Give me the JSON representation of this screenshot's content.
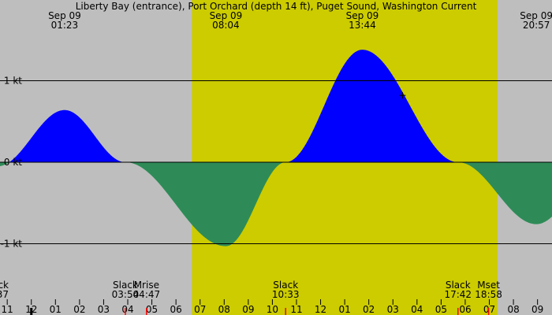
{
  "chart_data": {
    "type": "area",
    "title": "Liberty Bay (entrance), Port Orchard (depth 14 ft), Puget Sound, Washington Current",
    "xlabel": "",
    "ylabel": "",
    "x_unit": "hours",
    "xlim": [
      10.7,
      33.6
    ],
    "ylim": [
      -1.95,
      2.0
    ],
    "colors": {
      "background": "#bebebe",
      "daylight": "#cccc00",
      "flood": "#0000ff",
      "ebb": "#2e8b57",
      "line": "#000000",
      "tick_red": "#ff0000"
    },
    "daylight": {
      "start": 18.66,
      "end": 31.34
    },
    "y_ticks": [
      {
        "value": 1,
        "label": "1 kt"
      },
      {
        "value": 0,
        "label": "0 kt"
      },
      {
        "value": -1,
        "label": "-1 kt"
      }
    ],
    "series": [
      {
        "values": [
          {
            "x": 10.6,
            "y": -0.05
          },
          {
            "x": 13.38,
            "y": 0.64
          },
          {
            "x": 15.9,
            "y": 0.0
          },
          {
            "x": 20.07,
            "y": -1.03
          },
          {
            "x": 22.55,
            "y": 0.0
          },
          {
            "x": 25.73,
            "y": 1.38
          },
          {
            "x": 29.7,
            "y": 0.0
          },
          {
            "x": 32.95,
            "y": -0.76
          },
          {
            "x": 35.5,
            "y": -0.15
          }
        ]
      }
    ],
    "top_labels": [
      {
        "x": 13.38,
        "date": "Sep 09",
        "time": "01:23"
      },
      {
        "x": 20.07,
        "date": "Sep 09",
        "time": "08:04"
      },
      {
        "x": 25.73,
        "date": "Sep 09",
        "time": "13:44"
      },
      {
        "x": 32.95,
        "date": "Sep 09",
        "time": "20:57"
      }
    ],
    "bottom_labels": [
      {
        "x": 10.2,
        "name": "Slack",
        "time": "37"
      },
      {
        "x": 15.9,
        "name": "Slack",
        "time": "03:54"
      },
      {
        "x": 16.78,
        "name": "Mrise",
        "time": "04:47"
      },
      {
        "x": 22.55,
        "name": "Slack",
        "time": "10:33"
      },
      {
        "x": 29.7,
        "name": "Slack",
        "time": "17:42"
      },
      {
        "x": 30.97,
        "name": "Mset",
        "time": "18:58"
      }
    ],
    "hour_ticks": [
      {
        "x": 11,
        "label": "11"
      },
      {
        "x": 12,
        "label": "12"
      },
      {
        "x": 13,
        "label": "01"
      },
      {
        "x": 14,
        "label": "02"
      },
      {
        "x": 15,
        "label": "03"
      },
      {
        "x": 16,
        "label": "04"
      },
      {
        "x": 17,
        "label": "05"
      },
      {
        "x": 18,
        "label": "06"
      },
      {
        "x": 19,
        "label": "07"
      },
      {
        "x": 20,
        "label": "08"
      },
      {
        "x": 21,
        "label": "09"
      },
      {
        "x": 22,
        "label": "10"
      },
      {
        "x": 23,
        "label": "11"
      },
      {
        "x": 24,
        "label": "12"
      },
      {
        "x": 25,
        "label": "01"
      },
      {
        "x": 26,
        "label": "02"
      },
      {
        "x": 27,
        "label": "03"
      },
      {
        "x": 28,
        "label": "04"
      },
      {
        "x": 29,
        "label": "05"
      },
      {
        "x": 30,
        "label": "06"
      },
      {
        "x": 31,
        "label": "07"
      },
      {
        "x": 32,
        "label": "08"
      },
      {
        "x": 33,
        "label": "09"
      }
    ],
    "red_ticks": [
      15.9,
      16.78,
      22.55,
      29.7,
      30.97
    ],
    "midnight_tick": 12,
    "cursor": {
      "x": 27.4,
      "y": 0.82
    }
  }
}
